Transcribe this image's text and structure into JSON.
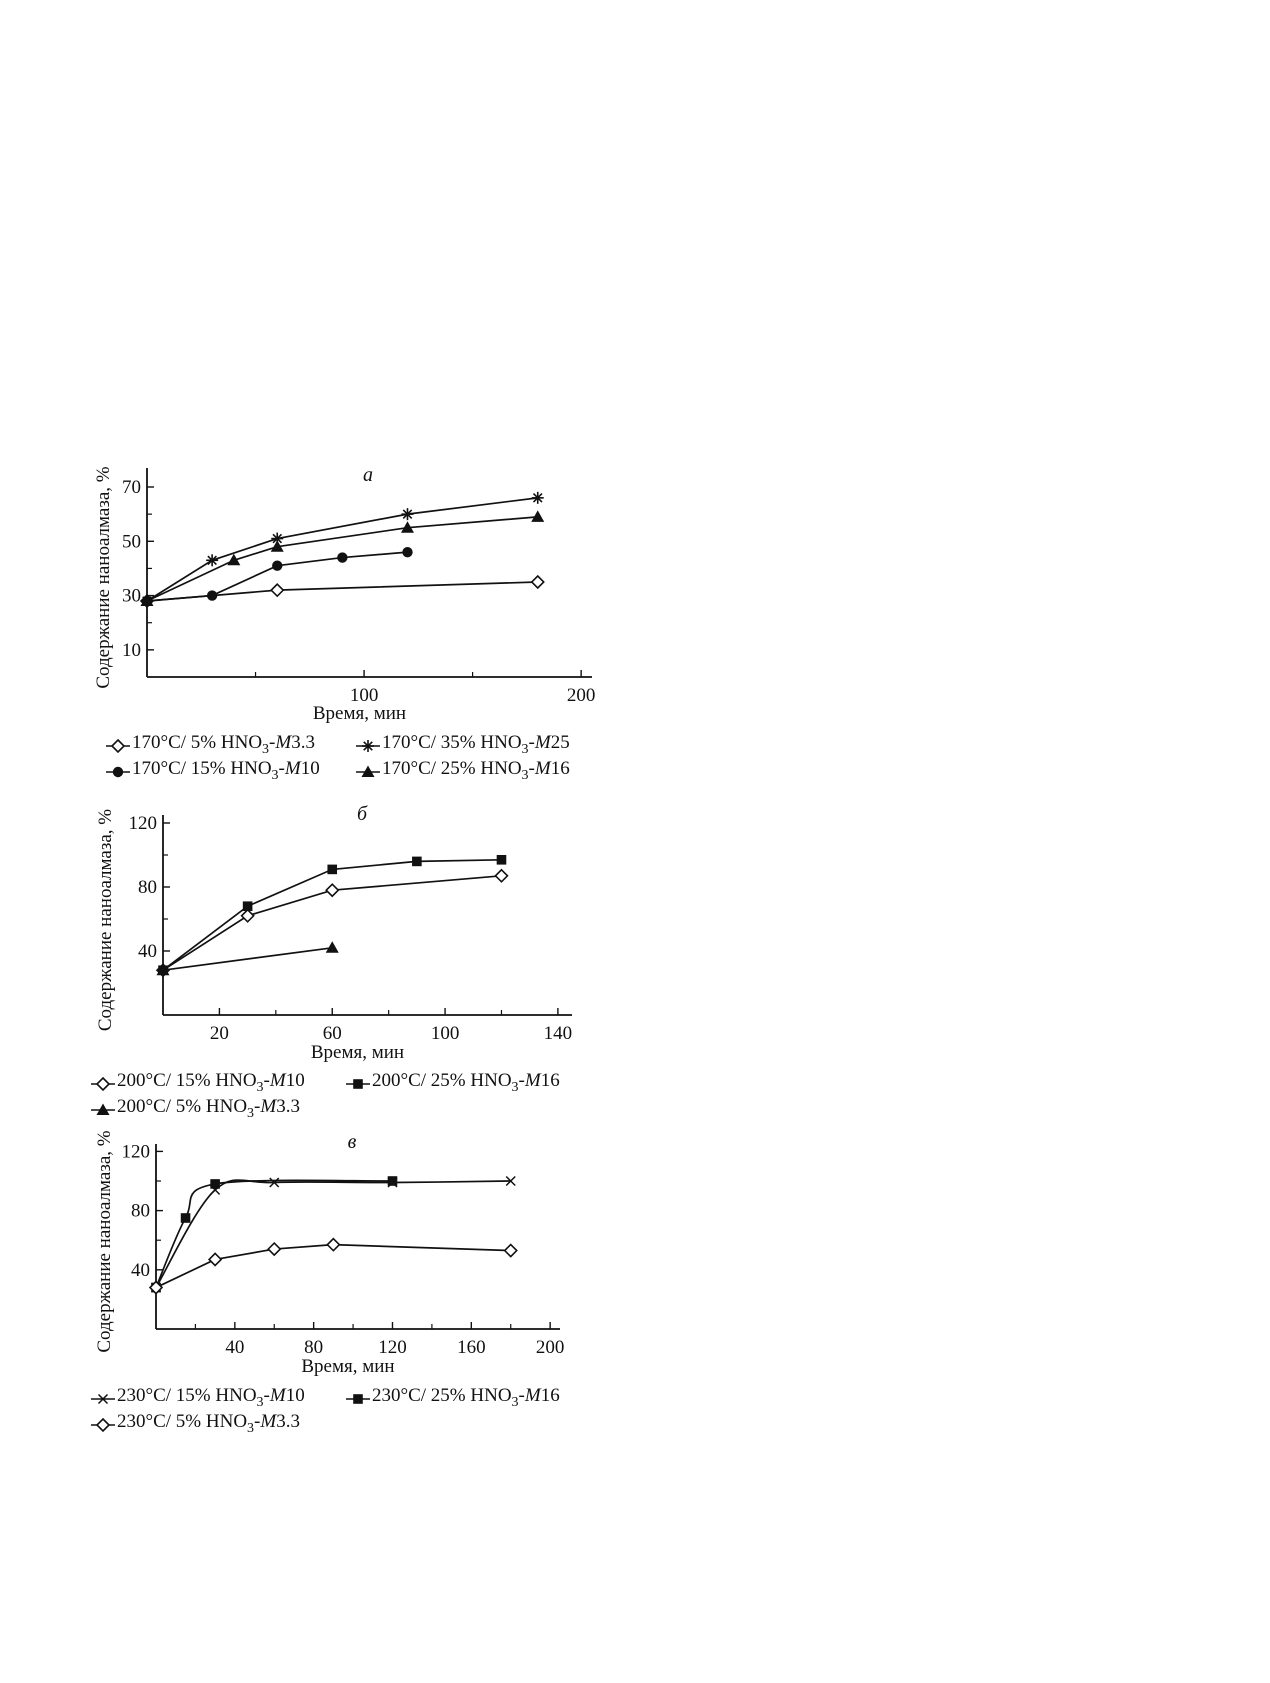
{
  "chart_data": [
    {
      "type": "line",
      "panel_label": "а",
      "xlabel": "Время, мин",
      "ylabel": "Содержание наноалмаза, %",
      "xlim": [
        0,
        205
      ],
      "ylim": [
        0,
        77
      ],
      "xticks": [
        100,
        200
      ],
      "yticks": [
        10,
        30,
        50,
        70
      ],
      "grid": false,
      "legend_position": "bottom",
      "series": [
        {
          "name": "170°C/ 5% HNO3-M3.3",
          "marker": "diamond-open",
          "x": [
            0,
            60,
            180
          ],
          "y": [
            28,
            32,
            35
          ]
        },
        {
          "name": "170°C/ 35% HNO3-M25",
          "marker": "asterisk",
          "x": [
            0,
            30,
            60,
            120,
            180
          ],
          "y": [
            28,
            43,
            51,
            60,
            66
          ]
        },
        {
          "name": "170°C/ 15% HNO3-M10",
          "marker": "circle-filled",
          "x": [
            0,
            30,
            60,
            90,
            120
          ],
          "y": [
            28,
            30,
            41,
            44,
            46
          ]
        },
        {
          "name": "170°C/ 25% HNO3-M16",
          "marker": "triangle-filled",
          "x": [
            0,
            40,
            60,
            120,
            180
          ],
          "y": [
            28,
            43,
            48,
            55,
            59
          ]
        }
      ]
    },
    {
      "type": "line",
      "panel_label": "б",
      "xlabel": "Время, мин",
      "ylabel": "Содержание наноалмаза, %",
      "xlim": [
        0,
        145
      ],
      "ylim": [
        0,
        125
      ],
      "xticks": [
        20,
        60,
        100,
        140
      ],
      "yticks": [
        40,
        80,
        120
      ],
      "grid": false,
      "legend_position": "bottom",
      "series": [
        {
          "name": "200°C/ 15% HNO3-M10",
          "marker": "diamond-open",
          "x": [
            0,
            30,
            60,
            120
          ],
          "y": [
            28,
            62,
            78,
            87
          ]
        },
        {
          "name": "200°C/ 25% HNO3-M16",
          "marker": "square-filled",
          "x": [
            0,
            30,
            60,
            90,
            120
          ],
          "y": [
            28,
            68,
            91,
            96,
            97
          ]
        },
        {
          "name": "200°C/ 5% HNO3-M3.3",
          "marker": "triangle-filled",
          "x": [
            0,
            60
          ],
          "y": [
            28,
            42
          ]
        }
      ]
    },
    {
      "type": "line",
      "panel_label": "в",
      "xlabel": "Время, мин",
      "ylabel": "Содержание наноалмаза, %",
      "xlim": [
        0,
        205
      ],
      "ylim": [
        0,
        125
      ],
      "xticks": [
        40,
        80,
        120,
        160,
        200
      ],
      "yticks": [
        40,
        80,
        120
      ],
      "grid": false,
      "legend_position": "bottom",
      "series": [
        {
          "name": "230°C/ 15% HNO3-M10",
          "marker": "x",
          "x": [
            0,
            30,
            60,
            120,
            180
          ],
          "y": [
            28,
            94,
            99,
            99,
            100
          ]
        },
        {
          "name": "230°C/ 25% HNO3-M16",
          "marker": "square-filled",
          "x": [
            0,
            15,
            30,
            120
          ],
          "y": [
            28,
            75,
            98,
            100
          ]
        },
        {
          "name": "230°C/ 5% HNO3-M3.3",
          "marker": "diamond-open",
          "x": [
            0,
            30,
            60,
            90,
            180
          ],
          "y": [
            28,
            47,
            54,
            57,
            53
          ]
        }
      ]
    }
  ],
  "legends": [
    [
      {
        "series": 0,
        "temp": "170°C/ 5% HNO",
        "sub": "3",
        "dash": "-",
        "m": "M",
        "num": "3.3"
      },
      {
        "series": 1,
        "temp": "170°C/ 35% HNO",
        "sub": "3",
        "dash": "-",
        "m": "M",
        "num": "25"
      },
      {
        "series": 2,
        "temp": "170°C/ 15% HNO",
        "sub": "3",
        "dash": "-",
        "m": "M",
        "num": "10"
      },
      {
        "series": 3,
        "temp": "170°C/ 25% HNO",
        "sub": "3",
        "dash": "-",
        "m": "M",
        "num": "16"
      }
    ],
    [
      {
        "series": 0,
        "temp": "200°C/ 15% HNO",
        "sub": "3",
        "dash": "-",
        "m": "M",
        "num": "10"
      },
      {
        "series": 1,
        "temp": "200°C/ 25% HNO",
        "sub": "3",
        "dash": "-",
        "m": "M",
        "num": "16"
      },
      {
        "series": 2,
        "temp": "200°C/ 5% HNO",
        "sub": "3",
        "dash": "-",
        "m": "M",
        "num": "3.3"
      }
    ],
    [
      {
        "series": 0,
        "temp": "230°C/ 15% HNO",
        "sub": "3",
        "dash": "-",
        "m": "M",
        "num": "10"
      },
      {
        "series": 1,
        "temp": "230°C/ 25% HNO",
        "sub": "3",
        "dash": "-",
        "m": "M",
        "num": "16"
      },
      {
        "series": 2,
        "temp": "230°C/ 5% HNO",
        "sub": "3",
        "dash": "-",
        "m": "M",
        "num": "3.3"
      }
    ]
  ]
}
